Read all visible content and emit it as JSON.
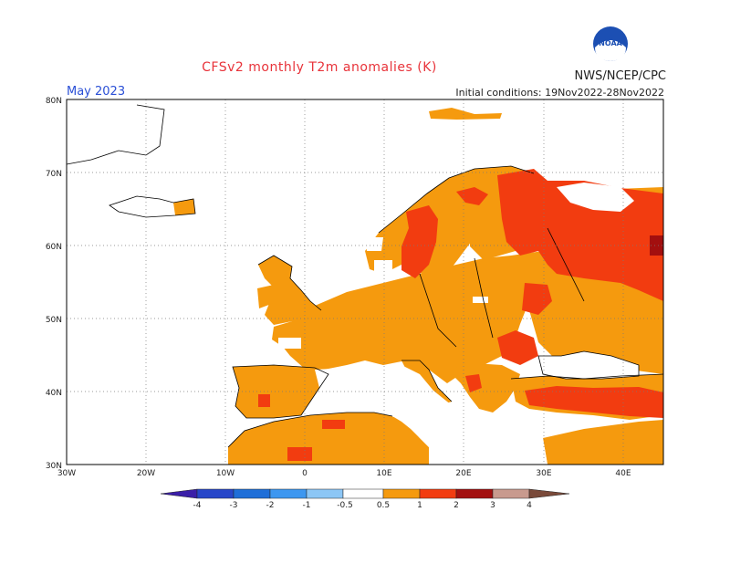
{
  "header": {
    "title": "CFSv2 monthly T2m anomalies (K)",
    "org": "NWS/NCEP/CPC",
    "month": "May 2023",
    "initial_conditions": "Initial conditions: 19Nov2022-28Nov2022",
    "logo_text": "NOAA"
  },
  "map": {
    "lon_labels": [
      "30W",
      "20W",
      "10W",
      "0",
      "10E",
      "20E",
      "30E",
      "40E"
    ],
    "lat_labels": [
      "80N",
      "70N",
      "60N",
      "50N",
      "40N",
      "30N"
    ],
    "lon_range": [
      -30,
      45
    ],
    "lat_range": [
      30,
      80
    ]
  },
  "legend": {
    "labels": [
      "-4",
      "-3",
      "-2",
      "-1",
      "-0.5",
      "0.5",
      "1",
      "2",
      "3",
      "4"
    ],
    "colors": [
      "#3b1fa8",
      "#2746c9",
      "#1e6ed8",
      "#3d97f0",
      "#8cc6f5",
      "#ffffff",
      "#f59a0e",
      "#f23c10",
      "#a30f0f",
      "#c89a8e",
      "#7a4a3a"
    ]
  },
  "colors": {
    "anomaly_05_1": "#f59a0e",
    "anomaly_1_2": "#f23c10",
    "anomaly_2_3": "#a30f0f"
  }
}
